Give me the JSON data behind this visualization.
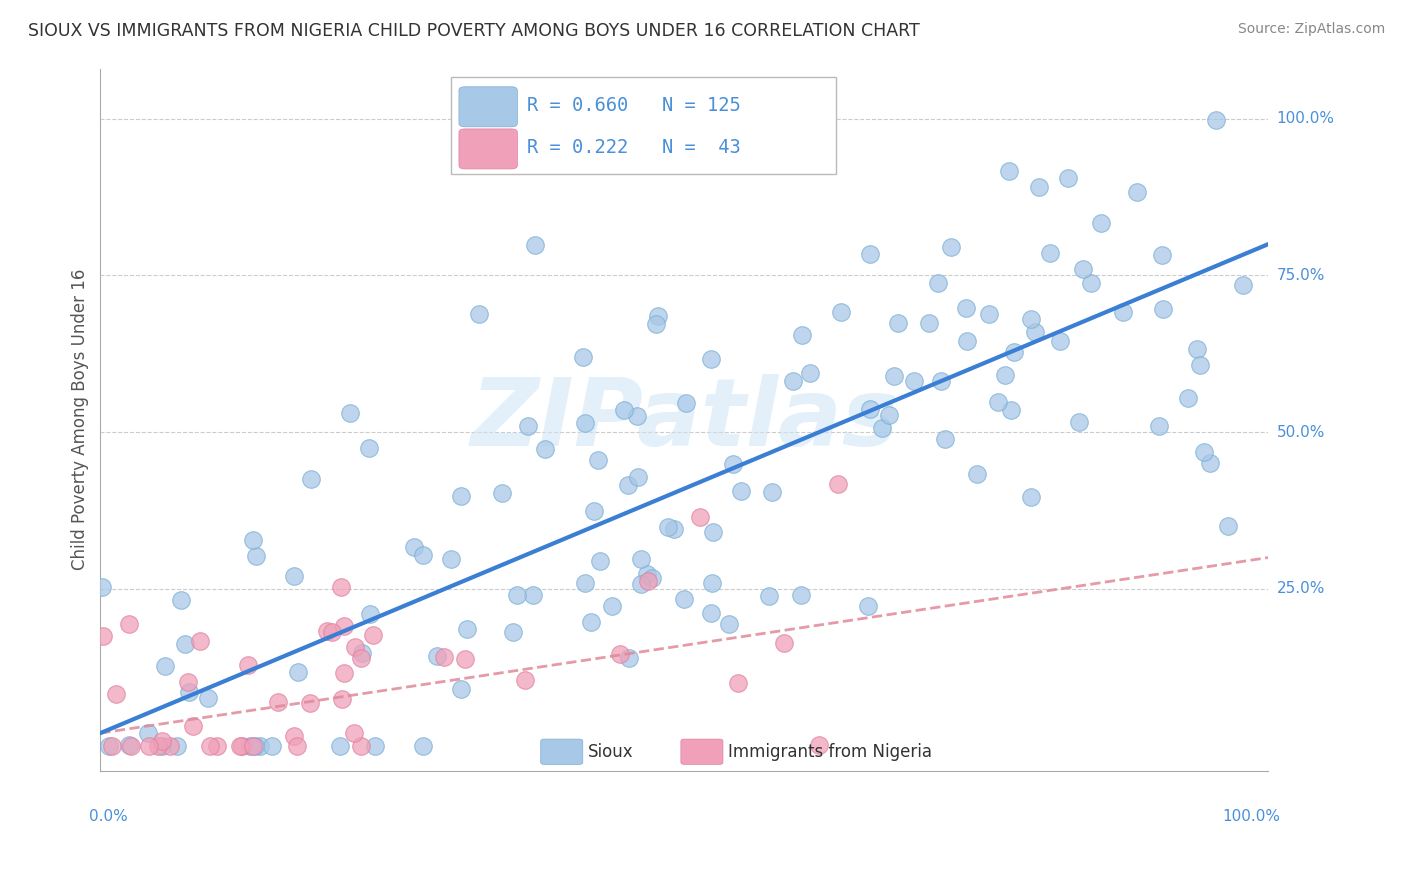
{
  "title": "SIOUX VS IMMIGRANTS FROM NIGERIA CHILD POVERTY AMONG BOYS UNDER 16 CORRELATION CHART",
  "source": "Source: ZipAtlas.com",
  "ylabel": "Child Poverty Among Boys Under 16",
  "watermark": "ZIPatlas",
  "color_sioux": "#a8c8e8",
  "color_sioux_edge": "#7aafd4",
  "color_nigeria": "#f0a0b8",
  "color_nigeria_edge": "#e080a0",
  "color_sioux_line": "#3a7fd4",
  "color_nigeria_line": "#e08898",
  "color_tick": "#4a90d9",
  "color_ylabel": "#555555",
  "color_title": "#333333",
  "color_source": "#888888",
  "color_grid": "#cccccc",
  "sioux_R": 0.66,
  "sioux_N": 125,
  "nigeria_R": 0.222,
  "nigeria_N": 43,
  "sioux_slope": 0.78,
  "sioux_intercept": 0.02,
  "nigeria_slope": 0.28,
  "nigeria_intercept": 0.02
}
